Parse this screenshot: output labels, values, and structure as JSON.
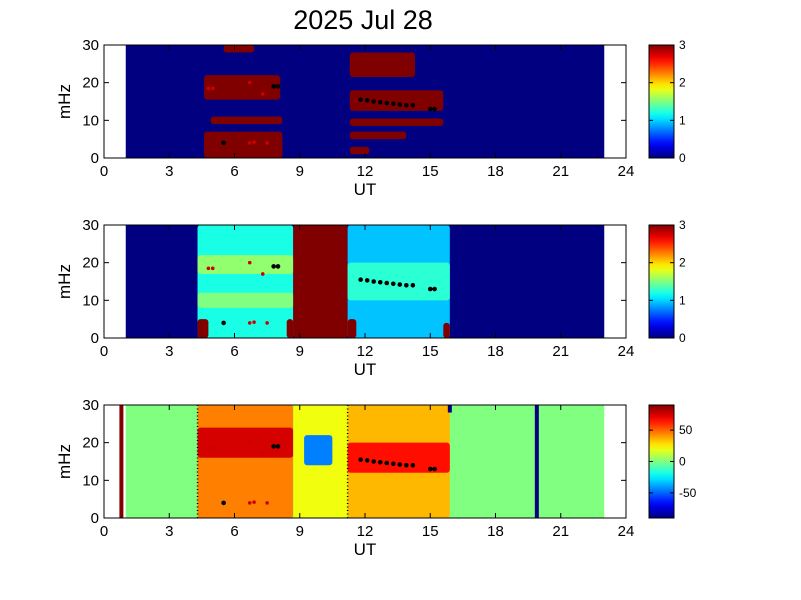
{
  "title": "2025 Jul 28",
  "chart_data": [
    {
      "type": "heatmap",
      "panel": 1,
      "xlabel": "UT",
      "ylabel": "mHz",
      "xlim": [
        0,
        24
      ],
      "ylim": [
        0,
        30
      ],
      "xticks": [
        "0",
        "3",
        "6",
        "9",
        "12",
        "15",
        "18",
        "21",
        "24"
      ],
      "yticks": [
        "0",
        "10",
        "20",
        "30"
      ],
      "colorbar": {
        "min": 0,
        "max": 3,
        "ticks": [
          "0",
          "1",
          "2",
          "3"
        ]
      },
      "background_value": 0,
      "data_range_ut": [
        1,
        23
      ],
      "regions": [
        {
          "x": [
            5.5,
            6.9
          ],
          "y": [
            28.0,
            30.0
          ],
          "value": 3
        },
        {
          "x": [
            4.6,
            8.1
          ],
          "y": [
            15.5,
            22.0
          ],
          "value": 3
        },
        {
          "x": [
            4.9,
            8.2
          ],
          "y": [
            9.0,
            11.0
          ],
          "value": 3
        },
        {
          "x": [
            4.6,
            8.2
          ],
          "y": [
            0.0,
            7.0
          ],
          "value": 3
        },
        {
          "x": [
            11.3,
            14.3
          ],
          "y": [
            21.5,
            28.0
          ],
          "value": 3
        },
        {
          "x": [
            11.3,
            15.6
          ],
          "y": [
            12.5,
            18.0
          ],
          "value": 3
        },
        {
          "x": [
            11.3,
            15.6
          ],
          "y": [
            8.5,
            10.5
          ],
          "value": 3
        },
        {
          "x": [
            11.3,
            13.9
          ],
          "y": [
            5.0,
            7.0
          ],
          "value": 3
        },
        {
          "x": [
            11.3,
            12.2
          ],
          "y": [
            1.0,
            3.0
          ],
          "value": 3
        }
      ],
      "markers_black": [
        [
          7.8,
          19.0
        ],
        [
          8.0,
          19.0
        ],
        [
          5.5,
          4.0
        ],
        [
          11.8,
          15.5
        ],
        [
          12.1,
          15.3
        ],
        [
          12.4,
          15.0
        ],
        [
          12.7,
          14.8
        ],
        [
          13.0,
          14.6
        ],
        [
          13.3,
          14.4
        ],
        [
          13.6,
          14.2
        ],
        [
          13.9,
          14.0
        ],
        [
          14.2,
          14.0
        ],
        [
          15.0,
          13.0
        ],
        [
          15.2,
          13.0
        ]
      ],
      "markers_red": [
        [
          4.8,
          18.5
        ],
        [
          5.0,
          18.5
        ],
        [
          6.7,
          20.0
        ],
        [
          7.3,
          17.0
        ],
        [
          6.7,
          4.0
        ],
        [
          6.9,
          4.2
        ],
        [
          7.5,
          4.0
        ]
      ]
    },
    {
      "type": "heatmap",
      "panel": 2,
      "xlabel": "UT",
      "ylabel": "mHz",
      "xlim": [
        0,
        24
      ],
      "ylim": [
        0,
        30
      ],
      "xticks": [
        "0",
        "3",
        "6",
        "9",
        "12",
        "15",
        "18",
        "21",
        "24"
      ],
      "yticks": [
        "0",
        "10",
        "20",
        "30"
      ],
      "colorbar": {
        "min": 0,
        "max": 3,
        "ticks": [
          "0",
          "1",
          "2",
          "3"
        ]
      },
      "background_value": 0,
      "data_range_ut": [
        1,
        23
      ],
      "regions": [
        {
          "x": [
            4.3,
            8.7
          ],
          "y": [
            0.0,
            30.0
          ],
          "value": 1.2
        },
        {
          "x": [
            4.3,
            8.7
          ],
          "y": [
            17.0,
            22.0
          ],
          "value": 1.55
        },
        {
          "x": [
            4.3,
            8.7
          ],
          "y": [
            8.0,
            12.0
          ],
          "value": 1.5
        },
        {
          "x": [
            8.7,
            11.2
          ],
          "y": [
            0.0,
            30.0
          ],
          "value": 3
        },
        {
          "x": [
            11.2,
            15.9
          ],
          "y": [
            0.0,
            30.0
          ],
          "value": 0.95
        },
        {
          "x": [
            11.2,
            15.9
          ],
          "y": [
            10.0,
            20.0
          ],
          "value": 1.25
        },
        {
          "x": [
            4.3,
            4.8
          ],
          "y": [
            0.0,
            5.0
          ],
          "value": 3
        },
        {
          "x": [
            8.4,
            8.7
          ],
          "y": [
            0.0,
            5.0
          ],
          "value": 3
        },
        {
          "x": [
            11.2,
            11.6
          ],
          "y": [
            0.0,
            5.0
          ],
          "value": 3
        },
        {
          "x": [
            15.6,
            15.9
          ],
          "y": [
            0.0,
            4.0
          ],
          "value": 3
        }
      ],
      "markers_black": [
        [
          7.8,
          19.0
        ],
        [
          8.0,
          19.0
        ],
        [
          5.5,
          4.0
        ],
        [
          11.8,
          15.5
        ],
        [
          12.1,
          15.3
        ],
        [
          12.4,
          15.0
        ],
        [
          12.7,
          14.8
        ],
        [
          13.0,
          14.6
        ],
        [
          13.3,
          14.4
        ],
        [
          13.6,
          14.2
        ],
        [
          13.9,
          14.0
        ],
        [
          14.2,
          14.0
        ],
        [
          15.0,
          13.0
        ],
        [
          15.2,
          13.0
        ]
      ],
      "markers_red": [
        [
          4.8,
          18.5
        ],
        [
          5.0,
          18.5
        ],
        [
          6.7,
          20.0
        ],
        [
          7.3,
          17.0
        ],
        [
          6.7,
          4.0
        ],
        [
          6.9,
          4.2
        ],
        [
          7.5,
          4.0
        ]
      ]
    },
    {
      "type": "heatmap",
      "panel": 3,
      "xlabel": "UT",
      "ylabel": "mHz",
      "xlim": [
        0,
        24
      ],
      "ylim": [
        0,
        30
      ],
      "xticks": [
        "0",
        "3",
        "6",
        "9",
        "12",
        "15",
        "18",
        "21",
        "24"
      ],
      "yticks": [
        "0",
        "10",
        "20",
        "30"
      ],
      "colorbar": {
        "min": -90,
        "max": 90,
        "ticks": [
          "-50",
          "0",
          "50"
        ]
      },
      "background_value": 0,
      "data_range_ut": [
        1,
        23
      ],
      "regions": [
        {
          "x": [
            4.3,
            8.7
          ],
          "y": [
            0.0,
            30.0
          ],
          "value": 45
        },
        {
          "x": [
            4.3,
            8.7
          ],
          "y": [
            16.0,
            24.0
          ],
          "value": 75
        },
        {
          "x": [
            8.7,
            11.2
          ],
          "y": [
            0.0,
            30.0
          ],
          "value": 20
        },
        {
          "x": [
            9.2,
            10.5
          ],
          "y": [
            14.0,
            22.0
          ],
          "value": -45
        },
        {
          "x": [
            11.2,
            15.9
          ],
          "y": [
            0.0,
            30.0
          ],
          "value": 35
        },
        {
          "x": [
            11.2,
            15.9
          ],
          "y": [
            12.0,
            20.0
          ],
          "value": 65
        }
      ],
      "vertical_lines": [
        {
          "x": 0.8,
          "value": 90
        },
        {
          "x": 15.9,
          "value": -90,
          "y": [
            28.0,
            30.0
          ]
        },
        {
          "x": 19.9,
          "value": -90
        }
      ],
      "dotted_lines_ut": [
        4.3,
        11.2
      ],
      "markers_black": [
        [
          7.8,
          19.0
        ],
        [
          8.0,
          19.0
        ],
        [
          5.5,
          4.0
        ],
        [
          11.8,
          15.5
        ],
        [
          12.1,
          15.3
        ],
        [
          12.4,
          15.0
        ],
        [
          12.7,
          14.8
        ],
        [
          13.0,
          14.6
        ],
        [
          13.3,
          14.4
        ],
        [
          13.6,
          14.2
        ],
        [
          13.9,
          14.0
        ],
        [
          14.2,
          14.0
        ],
        [
          15.0,
          13.0
        ],
        [
          15.2,
          13.0
        ]
      ],
      "markers_red": [
        [
          4.8,
          18.5
        ],
        [
          5.0,
          18.5
        ],
        [
          6.7,
          20.0
        ],
        [
          7.3,
          17.0
        ],
        [
          6.7,
          4.0
        ],
        [
          6.9,
          4.2
        ],
        [
          7.5,
          4.0
        ]
      ]
    }
  ]
}
